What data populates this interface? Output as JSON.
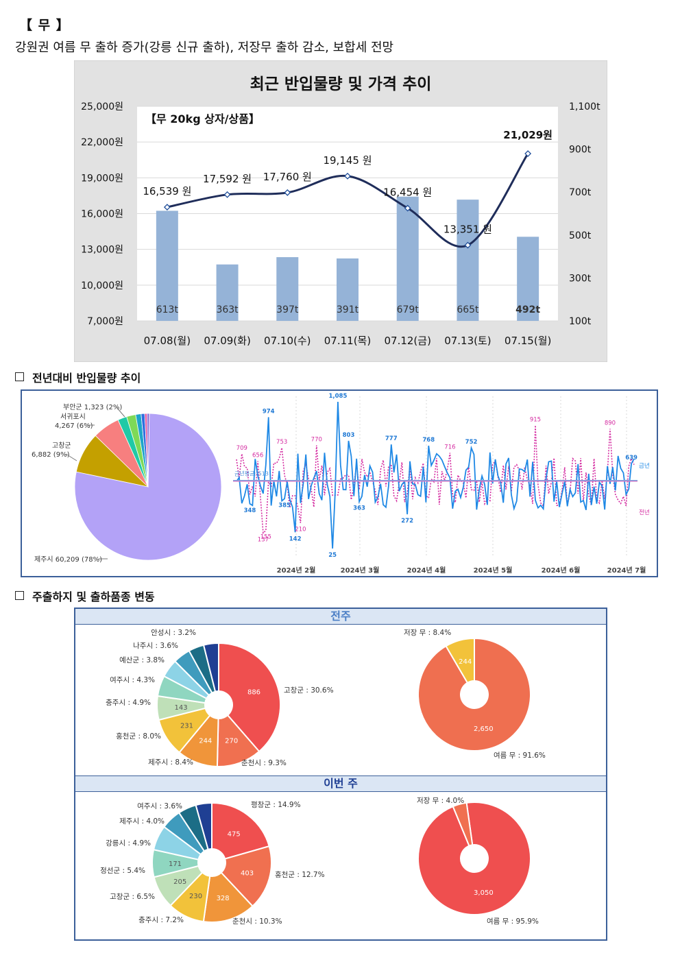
{
  "header": {
    "title": "【 무 】",
    "summary": "강원권 여름 무 출하 증가(강릉 신규 출하), 저장무 출하 감소, 보합세 전망"
  },
  "chart_data": [
    {
      "type": "bar+line",
      "title": "최근 반입물량 및 가격 추이",
      "subtitle": "【무 20kg 상자/상품】",
      "categories": [
        "07.08(월)",
        "07.09(화)",
        "07.10(수)",
        "07.11(목)",
        "07.12(금)",
        "07.13(토)",
        "07.15(월)"
      ],
      "volume": [
        613,
        363,
        397,
        391,
        679,
        665,
        492
      ],
      "volume_labels": [
        "613t",
        "363t",
        "397t",
        "391t",
        "679t",
        "665t",
        "492t"
      ],
      "price": [
        16539,
        17592,
        17760,
        19145,
        16454,
        13351,
        21029
      ],
      "price_labels": [
        "16,539 원",
        "17,592 원",
        "17,760 원",
        "19,145 원",
        "16,454 원",
        "13,351 원",
        "21,029원"
      ],
      "left_axis": {
        "min": 7000,
        "max": 25000,
        "ticks": [
          "25,000원",
          "22,000원",
          "19,000원",
          "16,000원",
          "13,000원",
          "10,000원",
          "7,000원"
        ]
      },
      "right_axis": {
        "min": 100,
        "max": 1100,
        "ticks": [
          "1,100t",
          "900t",
          "700t",
          "500t",
          "300t",
          "100t"
        ]
      },
      "colors": {
        "bar": "#95b3d7",
        "line": "#1f2d5a",
        "marker_fill": "#ffffff"
      }
    },
    {
      "type": "pie",
      "section_title": "전년대비 반입물량 추이",
      "slices": [
        {
          "label": "제주시 60,209 (78%)",
          "value": 78,
          "color": "#b3a2f7"
        },
        {
          "label": "고창군\n6,882 (9%)",
          "value": 9,
          "color": "#c4a000"
        },
        {
          "label": "서귀포시\n4,267 (6%)",
          "value": 6,
          "color": "#f77f7f"
        },
        {
          "label": "",
          "value": 2,
          "color": "#20c9a6"
        },
        {
          "label": "부안군 1,323 (2%)",
          "value": 2,
          "color": "#7ed957"
        },
        {
          "label": "",
          "value": 1.2,
          "color": "#1ea5c9"
        },
        {
          "label": "",
          "value": 0.8,
          "color": "#2f6fdf"
        },
        {
          "label": "",
          "value": 0.5,
          "color": "#e0529c"
        },
        {
          "label": "",
          "value": 0.5,
          "color": "#8a6fd6"
        }
      ]
    },
    {
      "type": "line",
      "series": [
        {
          "name": "금년",
          "color": "#1e88e5"
        },
        {
          "name": "전년",
          "color": "#d42aa0"
        }
      ],
      "avg_label": "금년평균: 513",
      "x_ticks": [
        "2024년 2월",
        "2024년 3월",
        "2024년 4월",
        "2024년 5월",
        "2024년 6월",
        "2024년 7월"
      ],
      "this_year_labels": [
        "974",
        "1,085",
        "803",
        "777",
        "768",
        "752",
        "639",
        "348",
        "385",
        "142",
        "25",
        "363",
        "272"
      ],
      "last_year_labels": [
        "709",
        "656",
        "753",
        "770",
        "716",
        "915",
        "890",
        "137",
        "155",
        "210"
      ]
    },
    {
      "type": "pie",
      "section_title": "주출하지 및 출하품종 변동",
      "panel_title": "전주",
      "slices": [
        {
          "label": "고창군 : 30.6%",
          "value": 886,
          "text": "886",
          "color": "#ef4f4f"
        },
        {
          "label": "춘천시 : 9.3%",
          "value": 270,
          "text": "270",
          "color": "#f07050"
        },
        {
          "label": "제주시 : 8.4%",
          "value": 244,
          "text": "244",
          "color": "#f0953a"
        },
        {
          "label": "홍천군 : 8.0%",
          "value": 231,
          "text": "231",
          "color": "#f2c23a"
        },
        {
          "label": "충주시 : 4.9%",
          "value": 143,
          "text": "143",
          "color": "#bfe0b8"
        },
        {
          "label": "여주시 : 4.3%",
          "value": 124,
          "text": "",
          "color": "#8fd6c0"
        },
        {
          "label": "예산군 : 3.8%",
          "value": 110,
          "text": "",
          "color": "#8dd3e6"
        },
        {
          "label": "나주시 : 3.6%",
          "value": 104,
          "text": "",
          "color": "#3f9bbd"
        },
        {
          "label": "안성시 : 3.2%",
          "value": 93,
          "text": "",
          "color": "#1c6d86"
        },
        {
          "label": "",
          "value": 90,
          "text": "",
          "color": "#1f3f93"
        }
      ]
    },
    {
      "type": "pie",
      "panel_title": "전주",
      "slices": [
        {
          "label": "여름 무 : 91.6%",
          "value": 2650,
          "text": "2,650",
          "color": "#ef6f50"
        },
        {
          "label": "저장 무 : 8.4%",
          "value": 244,
          "text": "244",
          "color": "#f2c23a"
        }
      ]
    },
    {
      "type": "pie",
      "panel_title": "이번 주",
      "slices": [
        {
          "label": "평창군 : 14.9%",
          "value": 475,
          "text": "475",
          "color": "#ef4f4f"
        },
        {
          "label": "홍천군 : 12.7%",
          "value": 403,
          "text": "403",
          "color": "#f07050"
        },
        {
          "label": "춘천시 : 10.3%",
          "value": 328,
          "text": "328",
          "color": "#f0953a"
        },
        {
          "label": "충주시 : 7.2%",
          "value": 230,
          "text": "230",
          "color": "#f2c23a"
        },
        {
          "label": "고창군 : 6.5%",
          "value": 205,
          "text": "205",
          "color": "#bfe0b8"
        },
        {
          "label": "정선군 : 5.4%",
          "value": 171,
          "text": "171",
          "color": "#8fd6c0"
        },
        {
          "label": "강릉시 : 4.9%",
          "value": 156,
          "text": "",
          "color": "#8dd3e6"
        },
        {
          "label": "제주시 : 4.0%",
          "value": 127,
          "text": "",
          "color": "#3f9bbd"
        },
        {
          "label": "여주시 : 3.6%",
          "value": 114,
          "text": "",
          "color": "#1c6d86"
        },
        {
          "label": "",
          "value": 100,
          "text": "",
          "color": "#1f3f93"
        }
      ]
    },
    {
      "type": "pie",
      "panel_title": "이번 주",
      "slices": [
        {
          "label": "여름 무 : 95.9%",
          "value": 3050,
          "text": "3,050",
          "color": "#ef4f4f"
        },
        {
          "label": "저장 무 : 4.0%",
          "value": 127,
          "text": "",
          "color": "#f07050"
        }
      ]
    }
  ],
  "sections": {
    "trend_title": "전년대비 반입물량 추이",
    "origin_title": "주출하지 및 출하품종 변동",
    "prev_week": "전주",
    "this_week": "이번 주"
  }
}
